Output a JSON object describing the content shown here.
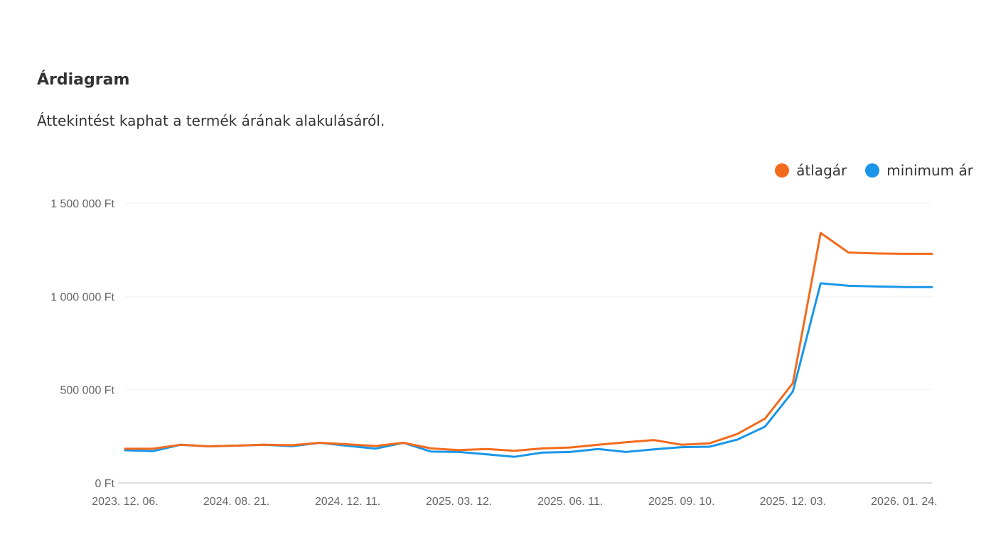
{
  "header": {
    "title": "Árdiagram",
    "subtitle": "Áttekintést kaphat a termék árának alakulásáról."
  },
  "colors": {
    "atlagar": "#f26b1d",
    "minimum": "#1a96e8",
    "grid": "#f2f2f2",
    "axis": "#bbbbbb"
  },
  "chart_data": {
    "type": "line",
    "title": "",
    "xlabel": "",
    "ylabel": "",
    "ylim": [
      0,
      1500000
    ],
    "y_ticks": [
      {
        "value": 0,
        "label": "0 Ft"
      },
      {
        "value": 500000,
        "label": "500 000 Ft"
      },
      {
        "value": 1000000,
        "label": "1 000 000 Ft"
      },
      {
        "value": 1500000,
        "label": "1 500 000 Ft"
      }
    ],
    "x_tick_labels": [
      {
        "index": 0,
        "label": "2023. 12. 06."
      },
      {
        "index": 4,
        "label": "2024. 08. 21."
      },
      {
        "index": 8,
        "label": "2024. 12. 11."
      },
      {
        "index": 12,
        "label": "2025. 03. 12."
      },
      {
        "index": 16,
        "label": "2025. 06. 11."
      },
      {
        "index": 20,
        "label": "2025. 09. 10."
      },
      {
        "index": 24,
        "label": "2025. 12. 03."
      },
      {
        "index": 28,
        "label": "2026. 01. 24."
      }
    ],
    "point_count": 30,
    "legend_position": "top-right",
    "series": [
      {
        "name": "átlagár",
        "color_key": "atlagar",
        "values": [
          183000,
          183000,
          205000,
          196000,
          200000,
          205000,
          202000,
          215000,
          207000,
          198000,
          215000,
          185000,
          176000,
          182000,
          172000,
          185000,
          190000,
          205000,
          218000,
          230000,
          205000,
          212000,
          262000,
          345000,
          535000,
          1340000,
          1235000,
          1230000,
          1228000,
          1228000
        ]
      },
      {
        "name": "minimum ár",
        "color_key": "minimum",
        "values": [
          175000,
          170000,
          205000,
          196000,
          200000,
          205000,
          197000,
          215000,
          199000,
          184000,
          215000,
          168000,
          166000,
          153000,
          140000,
          163000,
          166000,
          182000,
          166000,
          180000,
          192000,
          194000,
          232000,
          302000,
          490000,
          1070000,
          1057000,
          1053000,
          1050000,
          1050000
        ]
      }
    ]
  }
}
